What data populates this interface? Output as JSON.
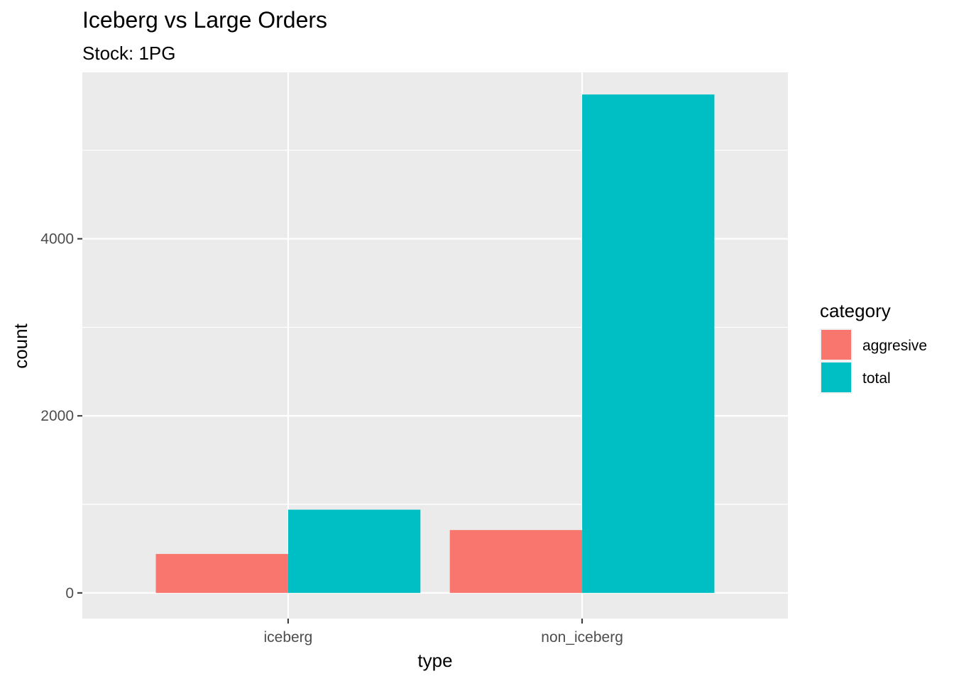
{
  "chart_data": {
    "type": "bar",
    "title": "Iceberg vs Large Orders",
    "subtitle": "Stock: 1PG",
    "xlabel": "type",
    "ylabel": "count",
    "categories": [
      "iceberg",
      "non_iceberg"
    ],
    "series": [
      {
        "name": "aggresive",
        "color": "#F8766D",
        "values": [
          440,
          710
        ]
      },
      {
        "name": "total",
        "color": "#00BFC4",
        "values": [
          940,
          5630
        ]
      }
    ],
    "ylim": [
      -290,
      5880
    ],
    "yticks": [
      0,
      2000,
      4000
    ],
    "ytick_labels": [
      "0",
      "2000",
      "4000"
    ],
    "grid": true,
    "legend": {
      "title": "category",
      "position": "right"
    },
    "panel_background": "#EBEBEB"
  }
}
